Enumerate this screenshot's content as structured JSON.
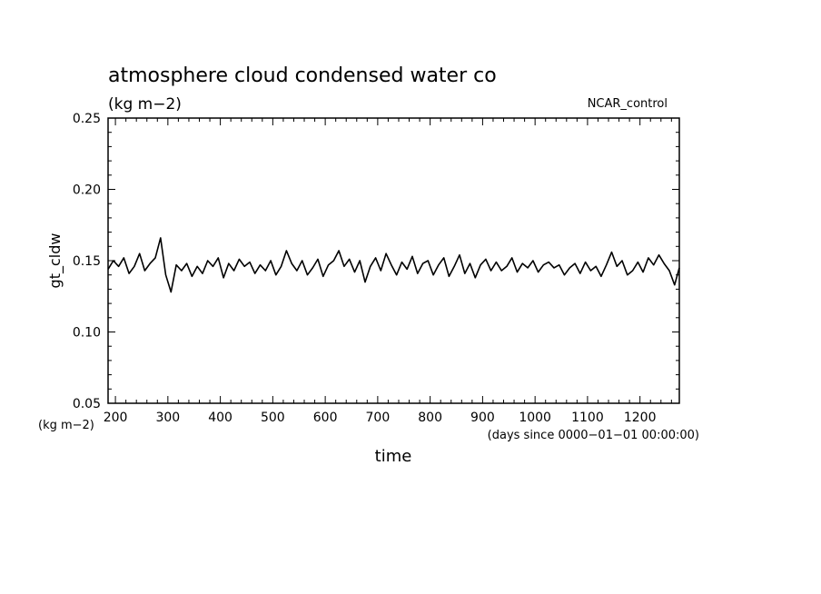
{
  "chart_data": {
    "type": "line",
    "title": "atmosphere cloud condensed water co",
    "subtitle": "(kg m−2)",
    "run_label": "NCAR_control",
    "ylabel": "gt_cldw",
    "yunit_label": "(kg m−2)",
    "xlabel": "time",
    "xunit_label": "(days since 0000−01−01 00:00:00)",
    "xlim": [
      186,
      1275
    ],
    "ylim": [
      0.05,
      0.25
    ],
    "x_ticks": [
      "200",
      "300",
      "400",
      "500",
      "600",
      "700",
      "800",
      "900",
      "1000",
      "1100",
      "1200"
    ],
    "y_ticks": [
      "0.05",
      "0.10",
      "0.15",
      "0.20",
      "0.25"
    ],
    "grid": false,
    "series": [
      {
        "x": [
          186,
          196,
          206,
          216,
          226,
          236,
          246,
          256,
          266,
          276,
          286,
          296,
          306,
          316,
          326,
          336,
          346,
          356,
          366,
          376,
          386,
          396,
          406,
          416,
          426,
          436,
          446,
          456,
          466,
          476,
          486,
          496,
          506,
          516,
          526,
          536,
          546,
          556,
          566,
          576,
          586,
          596,
          606,
          616,
          626,
          636,
          646,
          656,
          666,
          676,
          686,
          696,
          706,
          716,
          726,
          736,
          746,
          756,
          766,
          776,
          786,
          796,
          806,
          816,
          826,
          836,
          846,
          856,
          866,
          876,
          886,
          896,
          906,
          916,
          926,
          936,
          946,
          956,
          966,
          976,
          986,
          996,
          1006,
          1016,
          1026,
          1036,
          1046,
          1056,
          1066,
          1076,
          1086,
          1096,
          1106,
          1116,
          1126,
          1136,
          1146,
          1156,
          1166,
          1176,
          1186,
          1196,
          1206,
          1216,
          1226,
          1236,
          1246,
          1256,
          1266,
          1275
        ],
        "y": [
          0.144,
          0.15,
          0.146,
          0.152,
          0.141,
          0.146,
          0.155,
          0.143,
          0.148,
          0.152,
          0.166,
          0.14,
          0.128,
          0.147,
          0.143,
          0.148,
          0.139,
          0.146,
          0.141,
          0.15,
          0.146,
          0.152,
          0.138,
          0.148,
          0.143,
          0.151,
          0.146,
          0.149,
          0.141,
          0.147,
          0.143,
          0.15,
          0.14,
          0.146,
          0.157,
          0.148,
          0.143,
          0.15,
          0.14,
          0.145,
          0.151,
          0.139,
          0.147,
          0.15,
          0.157,
          0.146,
          0.151,
          0.142,
          0.15,
          0.135,
          0.146,
          0.152,
          0.143,
          0.155,
          0.147,
          0.14,
          0.149,
          0.144,
          0.153,
          0.141,
          0.148,
          0.15,
          0.14,
          0.147,
          0.152,
          0.139,
          0.146,
          0.154,
          0.141,
          0.148,
          0.138,
          0.147,
          0.151,
          0.143,
          0.149,
          0.143,
          0.146,
          0.152,
          0.142,
          0.148,
          0.145,
          0.15,
          0.142,
          0.147,
          0.149,
          0.145,
          0.147,
          0.14,
          0.145,
          0.148,
          0.141,
          0.149,
          0.143,
          0.146,
          0.139,
          0.147,
          0.156,
          0.146,
          0.15,
          0.14,
          0.143,
          0.149,
          0.142,
          0.152,
          0.147,
          0.154,
          0.148,
          0.143,
          0.133,
          0.145
        ]
      }
    ]
  }
}
